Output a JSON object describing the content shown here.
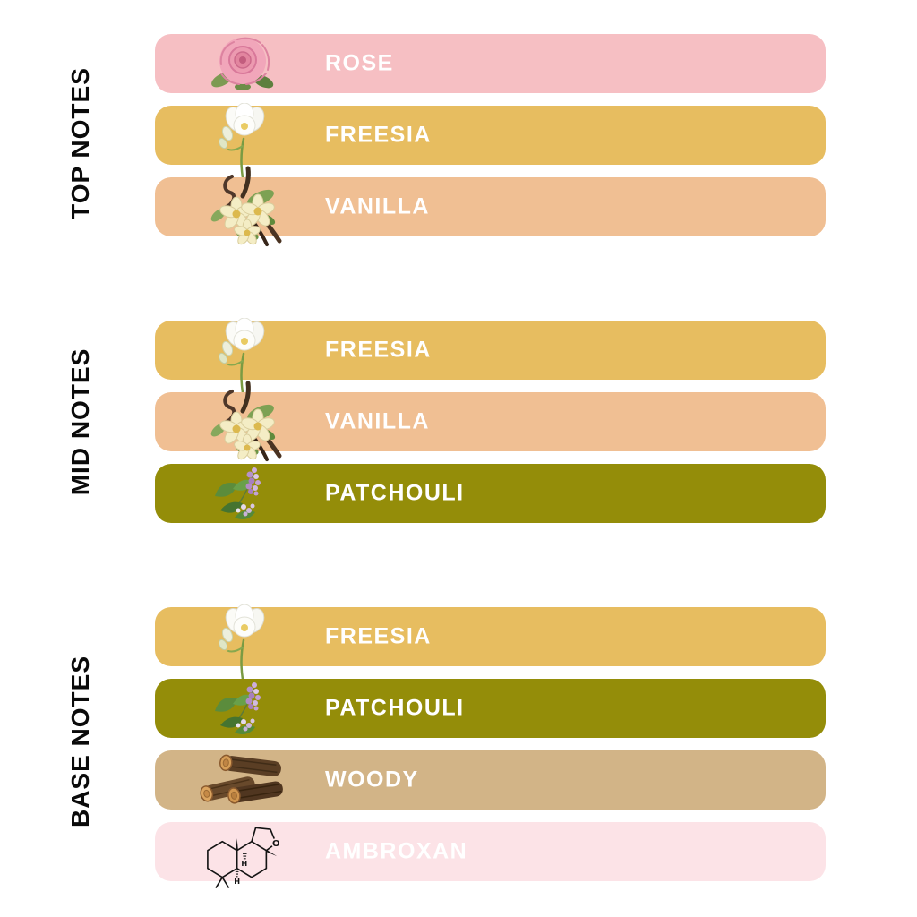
{
  "title": "Fragrance notes pyramid",
  "colors": {
    "background": "#ffffff",
    "section_label_text": "#0a0a0a",
    "note_label_text": "#ffffff",
    "rose": "#f6bfc3",
    "freesia": "#e7bd60",
    "vanilla": "#f0bf93",
    "patchouli": "#948d09",
    "woody": "#d2b487",
    "ambroxan": "#fce3e7"
  },
  "sections": [
    {
      "label": "TOP NOTES",
      "notes": [
        {
          "label": "ROSE",
          "icon": "rose-icon",
          "color": "#f6bfc3"
        },
        {
          "label": "FREESIA",
          "icon": "freesia-icon",
          "color": "#e7bd60"
        },
        {
          "label": "VANILLA",
          "icon": "vanilla-icon",
          "color": "#f0bf93"
        }
      ]
    },
    {
      "label": "MID NOTES",
      "notes": [
        {
          "label": "FREESIA",
          "icon": "freesia-icon",
          "color": "#e7bd60"
        },
        {
          "label": "VANILLA",
          "icon": "vanilla-icon",
          "color": "#f0bf93"
        },
        {
          "label": "PATCHOULI",
          "icon": "patchouli-icon",
          "color": "#948d09"
        }
      ]
    },
    {
      "label": "BASE NOTES",
      "notes": [
        {
          "label": "FREESIA",
          "icon": "freesia-icon",
          "color": "#e7bd60"
        },
        {
          "label": "PATCHOULI",
          "icon": "patchouli-icon",
          "color": "#948d09"
        },
        {
          "label": "WOODY",
          "icon": "woody-icon",
          "color": "#d2b487"
        },
        {
          "label": "AMBROXAN",
          "icon": "ambroxan-icon",
          "color": "#fce3e7"
        }
      ]
    }
  ]
}
